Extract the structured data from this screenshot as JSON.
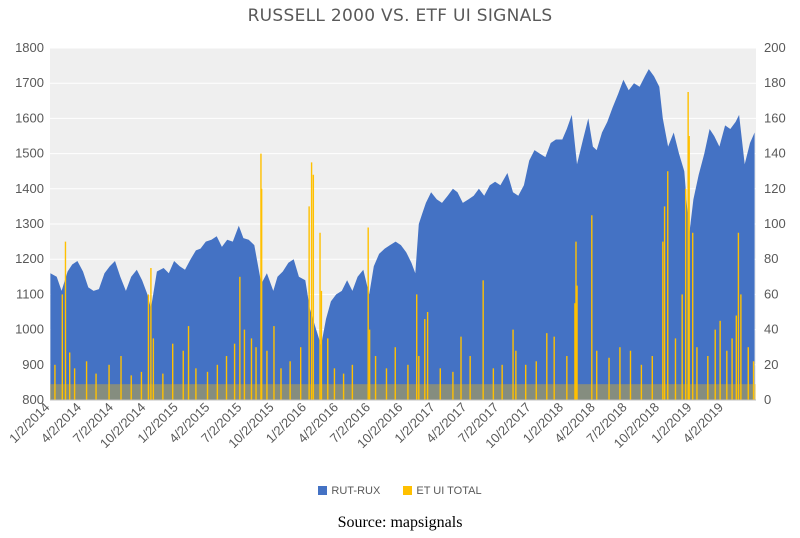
{
  "chart_data": {
    "type": "area",
    "title": "RUSSELL 2000 VS. ETF UI SIGNALS",
    "source": "Source: mapsignals",
    "xlabel": "",
    "ylabel": "",
    "ylim_left": [
      800,
      1800
    ],
    "ylim_right": [
      0,
      200
    ],
    "yticks_left": [
      "800",
      "900",
      "1000",
      "1100",
      "1200",
      "1300",
      "1400",
      "1500",
      "1600",
      "1700",
      "1800"
    ],
    "yticks_right": [
      "0",
      "20",
      "40",
      "60",
      "80",
      "100",
      "120",
      "140",
      "160",
      "180",
      "200"
    ],
    "x_ticks": [
      "1/2/2014",
      "4/2/2014",
      "7/2/2014",
      "10/2/2014",
      "1/2/2015",
      "4/2/2015",
      "7/2/2015",
      "10/2/2015",
      "1/2/2016",
      "4/2/2016",
      "7/2/2016",
      "10/2/2016",
      "1/2/2017",
      "4/2/2017",
      "7/2/2017",
      "10/2/2017",
      "1/2/2018",
      "4/2/2018",
      "7/2/2018",
      "10/2/2018",
      "1/2/2019",
      "4/2/2019"
    ],
    "grid": true,
    "legend_placement": "bottom",
    "series": [
      {
        "name": "RUT-RUX",
        "axis": "left",
        "color": "#4472C4",
        "points": [
          [
            "2014-01-02",
            1160
          ],
          [
            "2014-01-20",
            1150
          ],
          [
            "2014-02-03",
            1110
          ],
          [
            "2014-02-20",
            1165
          ],
          [
            "2014-03-05",
            1185
          ],
          [
            "2014-03-20",
            1195
          ],
          [
            "2014-04-05",
            1165
          ],
          [
            "2014-04-20",
            1120
          ],
          [
            "2014-05-05",
            1110
          ],
          [
            "2014-05-20",
            1115
          ],
          [
            "2014-06-05",
            1160
          ],
          [
            "2014-06-20",
            1180
          ],
          [
            "2014-07-05",
            1195
          ],
          [
            "2014-07-20",
            1150
          ],
          [
            "2014-08-05",
            1110
          ],
          [
            "2014-08-20",
            1150
          ],
          [
            "2014-09-05",
            1170
          ],
          [
            "2014-09-20",
            1140
          ],
          [
            "2014-10-05",
            1100
          ],
          [
            "2014-10-15",
            1060
          ],
          [
            "2014-11-01",
            1165
          ],
          [
            "2014-11-20",
            1175
          ],
          [
            "2014-12-05",
            1160
          ],
          [
            "2014-12-20",
            1195
          ],
          [
            "2015-01-05",
            1180
          ],
          [
            "2015-01-20",
            1170
          ],
          [
            "2015-02-05",
            1200
          ],
          [
            "2015-02-20",
            1225
          ],
          [
            "2015-03-05",
            1230
          ],
          [
            "2015-03-20",
            1250
          ],
          [
            "2015-04-05",
            1255
          ],
          [
            "2015-04-20",
            1265
          ],
          [
            "2015-05-05",
            1235
          ],
          [
            "2015-05-20",
            1255
          ],
          [
            "2015-06-05",
            1250
          ],
          [
            "2015-06-22",
            1295
          ],
          [
            "2015-07-05",
            1260
          ],
          [
            "2015-07-20",
            1255
          ],
          [
            "2015-08-05",
            1240
          ],
          [
            "2015-08-25",
            1130
          ],
          [
            "2015-09-10",
            1160
          ],
          [
            "2015-09-28",
            1110
          ],
          [
            "2015-10-10",
            1150
          ],
          [
            "2015-10-25",
            1165
          ],
          [
            "2015-11-10",
            1190
          ],
          [
            "2015-11-25",
            1200
          ],
          [
            "2015-12-10",
            1150
          ],
          [
            "2015-12-28",
            1140
          ],
          [
            "2016-01-10",
            1060
          ],
          [
            "2016-01-25",
            1010
          ],
          [
            "2016-02-11",
            955
          ],
          [
            "2016-02-25",
            1030
          ],
          [
            "2016-03-10",
            1080
          ],
          [
            "2016-03-25",
            1100
          ],
          [
            "2016-04-10",
            1110
          ],
          [
            "2016-04-25",
            1140
          ],
          [
            "2016-05-10",
            1110
          ],
          [
            "2016-05-25",
            1150
          ],
          [
            "2016-06-10",
            1170
          ],
          [
            "2016-06-27",
            1100
          ],
          [
            "2016-07-10",
            1180
          ],
          [
            "2016-07-25",
            1215
          ],
          [
            "2016-08-10",
            1230
          ],
          [
            "2016-08-25",
            1240
          ],
          [
            "2016-09-10",
            1250
          ],
          [
            "2016-09-25",
            1240
          ],
          [
            "2016-10-10",
            1220
          ],
          [
            "2016-10-25",
            1190
          ],
          [
            "2016-11-05",
            1160
          ],
          [
            "2016-11-15",
            1300
          ],
          [
            "2016-11-25",
            1330
          ],
          [
            "2016-12-05",
            1360
          ],
          [
            "2016-12-20",
            1390
          ],
          [
            "2017-01-05",
            1370
          ],
          [
            "2017-01-20",
            1360
          ],
          [
            "2017-02-05",
            1380
          ],
          [
            "2017-02-20",
            1400
          ],
          [
            "2017-03-05",
            1390
          ],
          [
            "2017-03-20",
            1360
          ],
          [
            "2017-04-05",
            1370
          ],
          [
            "2017-04-20",
            1380
          ],
          [
            "2017-05-05",
            1400
          ],
          [
            "2017-05-20",
            1380
          ],
          [
            "2017-06-05",
            1410
          ],
          [
            "2017-06-20",
            1420
          ],
          [
            "2017-07-05",
            1410
          ],
          [
            "2017-07-25",
            1445
          ],
          [
            "2017-08-10",
            1390
          ],
          [
            "2017-08-25",
            1380
          ],
          [
            "2017-09-10",
            1410
          ],
          [
            "2017-09-25",
            1480
          ],
          [
            "2017-10-10",
            1510
          ],
          [
            "2017-10-25",
            1500
          ],
          [
            "2017-11-10",
            1490
          ],
          [
            "2017-11-25",
            1530
          ],
          [
            "2017-12-10",
            1540
          ],
          [
            "2017-12-28",
            1540
          ],
          [
            "2018-01-10",
            1570
          ],
          [
            "2018-01-24",
            1610
          ],
          [
            "2018-02-08",
            1470
          ],
          [
            "2018-02-25",
            1540
          ],
          [
            "2018-03-12",
            1600
          ],
          [
            "2018-03-25",
            1520
          ],
          [
            "2018-04-05",
            1510
          ],
          [
            "2018-04-20",
            1560
          ],
          [
            "2018-05-05",
            1590
          ],
          [
            "2018-05-20",
            1630
          ],
          [
            "2018-06-05",
            1670
          ],
          [
            "2018-06-20",
            1710
          ],
          [
            "2018-07-05",
            1680
          ],
          [
            "2018-07-20",
            1700
          ],
          [
            "2018-08-05",
            1690
          ],
          [
            "2018-08-20",
            1720
          ],
          [
            "2018-08-31",
            1740
          ],
          [
            "2018-09-15",
            1720
          ],
          [
            "2018-09-30",
            1690
          ],
          [
            "2018-10-10",
            1600
          ],
          [
            "2018-10-25",
            1520
          ],
          [
            "2018-11-10",
            1560
          ],
          [
            "2018-11-25",
            1500
          ],
          [
            "2018-12-10",
            1450
          ],
          [
            "2018-12-24",
            1270
          ],
          [
            "2019-01-05",
            1370
          ],
          [
            "2019-01-20",
            1440
          ],
          [
            "2019-02-05",
            1500
          ],
          [
            "2019-02-20",
            1570
          ],
          [
            "2019-03-05",
            1550
          ],
          [
            "2019-03-20",
            1520
          ],
          [
            "2019-04-05",
            1580
          ],
          [
            "2019-04-20",
            1570
          ],
          [
            "2019-05-05",
            1590
          ],
          [
            "2019-05-15",
            1610
          ],
          [
            "2019-05-31",
            1470
          ],
          [
            "2019-06-15",
            1530
          ],
          [
            "2019-06-28",
            1560
          ]
        ]
      },
      {
        "name": "ET UI TOTAL",
        "axis": "right",
        "color": "#FFC000",
        "spikes": [
          [
            "2014-01-15",
            20
          ],
          [
            "2014-02-05",
            60
          ],
          [
            "2014-02-14",
            90
          ],
          [
            "2014-02-26",
            27
          ],
          [
            "2014-03-12",
            18
          ],
          [
            "2014-04-15",
            22
          ],
          [
            "2014-05-12",
            15
          ],
          [
            "2014-06-18",
            20
          ],
          [
            "2014-07-22",
            25
          ],
          [
            "2014-08-20",
            14
          ],
          [
            "2014-09-18",
            16
          ],
          [
            "2014-10-08",
            60
          ],
          [
            "2014-10-15",
            75
          ],
          [
            "2014-10-22",
            35
          ],
          [
            "2014-11-18",
            15
          ],
          [
            "2014-12-16",
            32
          ],
          [
            "2015-01-15",
            28
          ],
          [
            "2015-01-30",
            42
          ],
          [
            "2015-02-20",
            18
          ],
          [
            "2015-03-25",
            16
          ],
          [
            "2015-04-22",
            20
          ],
          [
            "2015-05-18",
            25
          ],
          [
            "2015-06-10",
            32
          ],
          [
            "2015-06-25",
            70
          ],
          [
            "2015-07-08",
            40
          ],
          [
            "2015-07-28",
            35
          ],
          [
            "2015-08-10",
            30
          ],
          [
            "2015-08-24",
            140
          ],
          [
            "2015-08-26",
            120
          ],
          [
            "2015-09-10",
            28
          ],
          [
            "2015-09-30",
            42
          ],
          [
            "2015-10-20",
            18
          ],
          [
            "2015-11-15",
            22
          ],
          [
            "2015-12-15",
            30
          ],
          [
            "2016-01-08",
            110
          ],
          [
            "2016-01-15",
            135
          ],
          [
            "2016-01-20",
            128
          ],
          [
            "2016-02-08",
            95
          ],
          [
            "2016-02-12",
            62
          ],
          [
            "2016-03-01",
            35
          ],
          [
            "2016-03-20",
            18
          ],
          [
            "2016-04-15",
            15
          ],
          [
            "2016-05-10",
            20
          ],
          [
            "2016-06-24",
            98
          ],
          [
            "2016-06-28",
            40
          ],
          [
            "2016-07-15",
            25
          ],
          [
            "2016-08-15",
            18
          ],
          [
            "2016-09-09",
            30
          ],
          [
            "2016-10-15",
            20
          ],
          [
            "2016-11-09",
            60
          ],
          [
            "2016-11-15",
            25
          ],
          [
            "2016-12-02",
            46
          ],
          [
            "2016-12-10",
            50
          ],
          [
            "2017-01-15",
            18
          ],
          [
            "2017-02-20",
            16
          ],
          [
            "2017-03-15",
            36
          ],
          [
            "2017-04-10",
            25
          ],
          [
            "2017-05-17",
            68
          ],
          [
            "2017-06-15",
            18
          ],
          [
            "2017-07-10",
            20
          ],
          [
            "2017-08-10",
            40
          ],
          [
            "2017-08-18",
            28
          ],
          [
            "2017-09-15",
            20
          ],
          [
            "2017-10-15",
            22
          ],
          [
            "2017-11-14",
            38
          ],
          [
            "2017-12-05",
            36
          ],
          [
            "2018-01-10",
            25
          ],
          [
            "2018-02-02",
            55
          ],
          [
            "2018-02-05",
            90
          ],
          [
            "2018-02-08",
            65
          ],
          [
            "2018-03-22",
            105
          ],
          [
            "2018-04-05",
            28
          ],
          [
            "2018-05-10",
            24
          ],
          [
            "2018-06-10",
            30
          ],
          [
            "2018-07-10",
            28
          ],
          [
            "2018-08-10",
            20
          ],
          [
            "2018-09-10",
            25
          ],
          [
            "2018-10-10",
            90
          ],
          [
            "2018-10-15",
            110
          ],
          [
            "2018-10-24",
            130
          ],
          [
            "2018-11-15",
            35
          ],
          [
            "2018-12-04",
            60
          ],
          [
            "2018-12-14",
            120
          ],
          [
            "2018-12-21",
            175
          ],
          [
            "2018-12-24",
            150
          ],
          [
            "2019-01-03",
            95
          ],
          [
            "2019-01-15",
            30
          ],
          [
            "2019-02-15",
            25
          ],
          [
            "2019-03-08",
            40
          ],
          [
            "2019-03-22",
            45
          ],
          [
            "2019-04-10",
            28
          ],
          [
            "2019-04-25",
            35
          ],
          [
            "2019-05-07",
            48
          ],
          [
            "2019-05-13",
            95
          ],
          [
            "2019-05-20",
            60
          ],
          [
            "2019-06-10",
            30
          ],
          [
            "2019-06-25",
            22
          ]
        ]
      }
    ]
  }
}
